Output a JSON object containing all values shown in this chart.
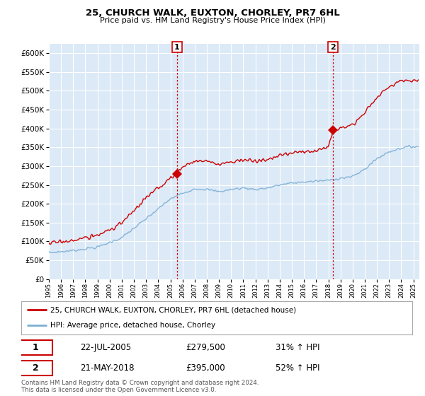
{
  "title": "25, CHURCH WALK, EUXTON, CHORLEY, PR7 6HL",
  "subtitle": "Price paid vs. HM Land Registry's House Price Index (HPI)",
  "ylim": [
    0,
    625000
  ],
  "yticks": [
    0,
    50000,
    100000,
    150000,
    200000,
    250000,
    300000,
    350000,
    400000,
    450000,
    500000,
    550000,
    600000
  ],
  "background_color": "#ffffff",
  "plot_bg_color": "#dce9f7",
  "grid_color": "#ffffff",
  "property_color": "#cc0000",
  "hpi_color": "#7bafd4",
  "vline_color": "#cc0000",
  "marker1_year": 2005.55,
  "marker2_year": 2018.38,
  "marker1_price": 279500,
  "marker2_price": 395000,
  "sale1_date": "22-JUL-2005",
  "sale1_price": "£279,500",
  "sale1_hpi": "31% ↑ HPI",
  "sale2_date": "21-MAY-2018",
  "sale2_price": "£395,000",
  "sale2_hpi": "52% ↑ HPI",
  "legend1": "25, CHURCH WALK, EUXTON, CHORLEY, PR7 6HL (detached house)",
  "legend2": "HPI: Average price, detached house, Chorley",
  "footer": "Contains HM Land Registry data © Crown copyright and database right 2024.\nThis data is licensed under the Open Government Licence v3.0.",
  "xmin": 1995,
  "xmax": 2025.5
}
